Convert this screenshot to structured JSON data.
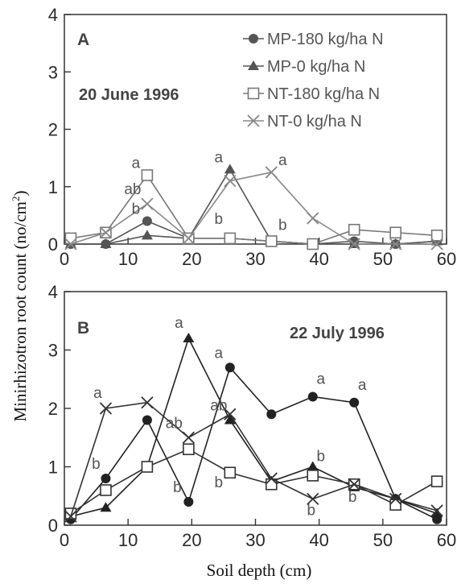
{
  "chart_data": [
    {
      "type": "line",
      "panel": "A",
      "date": "20 June 1996",
      "xlim": [
        0,
        60
      ],
      "ylim": [
        0,
        4
      ],
      "xticks": [
        "0",
        "10",
        "20",
        "30",
        "40",
        "50",
        "60"
      ],
      "yticks": [
        "0",
        "1",
        "2",
        "3",
        "4"
      ],
      "legend_position": "top-right",
      "series": [
        {
          "name": "MP-180 kg/ha N",
          "marker": "circle",
          "color": "#555555",
          "x": [
            1,
            6.5,
            13,
            19.5,
            26,
            32.5,
            39,
            45.5,
            52,
            58.5
          ],
          "y": [
            0.0,
            0.0,
            0.4,
            0.1,
            0.1,
            0.05,
            0.0,
            0.05,
            0.0,
            0.05
          ]
        },
        {
          "name": "MP-0 kg/ha N",
          "marker": "triangle",
          "color": "#555555",
          "x": [
            1,
            6.5,
            13,
            19.5,
            26,
            32.5,
            39,
            45.5,
            52,
            58.5
          ],
          "y": [
            0.0,
            0.0,
            0.15,
            0.1,
            1.3,
            0.05,
            0.0,
            0.0,
            0.0,
            0.05
          ]
        },
        {
          "name": "NT-180 kg/ha N",
          "marker": "square",
          "color": "#777777",
          "x": [
            1,
            6.5,
            13,
            19.5,
            26,
            32.5,
            39,
            45.5,
            52,
            58.5
          ],
          "y": [
            0.1,
            0.2,
            1.2,
            0.1,
            0.1,
            0.05,
            0.0,
            0.25,
            0.2,
            0.15
          ]
        },
        {
          "name": "NT-0 kg/ha N",
          "marker": "x",
          "color": "#888888",
          "x": [
            1,
            6.5,
            13,
            19.5,
            26,
            32.5,
            39,
            45.5,
            52,
            58.5
          ],
          "y": [
            0.0,
            0.2,
            0.7,
            0.1,
            1.1,
            1.25,
            0.45,
            0.0,
            0.0,
            0.0
          ]
        }
      ],
      "annotations": [
        {
          "text": "a",
          "x": 13,
          "y": 1.2
        },
        {
          "text": "ab",
          "x": 13,
          "y": 0.7
        },
        {
          "text": "b",
          "x": 13,
          "y": 0.4
        },
        {
          "text": "a",
          "x": 26,
          "y": 1.3
        },
        {
          "text": "b",
          "x": 26,
          "y": 0.1
        },
        {
          "text": "a",
          "x": 32.5,
          "y": 1.25
        },
        {
          "text": "b",
          "x": 32.5,
          "y": 0.05
        }
      ]
    },
    {
      "type": "line",
      "panel": "B",
      "date": "22 July 1996",
      "xlim": [
        0,
        60
      ],
      "ylim": [
        0,
        4
      ],
      "xticks": [
        "0",
        "10",
        "20",
        "30",
        "40",
        "50",
        "60"
      ],
      "yticks": [
        "0",
        "1",
        "2",
        "3",
        "4"
      ],
      "series": [
        {
          "name": "MP-180 kg/ha N",
          "marker": "circle",
          "color": "#222222",
          "x": [
            1,
            6.5,
            13,
            19.5,
            26,
            32.5,
            39,
            45.5,
            52,
            58.5
          ],
          "y": [
            0.1,
            0.8,
            1.8,
            0.4,
            2.7,
            1.9,
            2.2,
            2.1,
            0.45,
            0.1
          ]
        },
        {
          "name": "MP-0 kg/ha N",
          "marker": "triangle",
          "color": "#222222",
          "x": [
            1,
            6.5,
            13,
            19.5,
            26,
            32.5,
            39,
            45.5,
            52,
            58.5
          ],
          "y": [
            0.15,
            0.3,
            1.0,
            3.2,
            1.8,
            0.75,
            1.0,
            0.65,
            0.45,
            0.2
          ]
        },
        {
          "name": "NT-180 kg/ha N",
          "marker": "square",
          "color": "#333333",
          "x": [
            1,
            6.5,
            13,
            19.5,
            26,
            32.5,
            39,
            45.5,
            52,
            58.5
          ],
          "y": [
            0.2,
            0.6,
            1.0,
            1.3,
            0.9,
            0.7,
            0.85,
            0.7,
            0.35,
            0.75
          ]
        },
        {
          "name": "NT-0 kg/ha N",
          "marker": "x",
          "color": "#333333",
          "x": [
            1,
            6.5,
            13,
            19.5,
            26,
            32.5,
            39,
            45.5,
            52,
            58.5
          ],
          "y": [
            0.15,
            2.0,
            2.1,
            1.5,
            1.9,
            0.8,
            0.45,
            0.7,
            0.45,
            0.25
          ]
        }
      ],
      "annotations": [
        {
          "text": "a",
          "x": 6.5,
          "y": 2.0
        },
        {
          "text": "b",
          "x": 6.5,
          "y": 0.8
        },
        {
          "text": "a",
          "x": 19.5,
          "y": 3.2
        },
        {
          "text": "ab",
          "x": 19.5,
          "y": 1.5
        },
        {
          "text": "b",
          "x": 19.5,
          "y": 0.4
        },
        {
          "text": "a",
          "x": 26,
          "y": 2.7
        },
        {
          "text": "ab",
          "x": 26,
          "y": 1.8
        },
        {
          "text": "b",
          "x": 26,
          "y": 0.9
        },
        {
          "text": "a",
          "x": 39,
          "y": 2.2
        },
        {
          "text": "b",
          "x": 39,
          "y": 0.85
        },
        {
          "text": "b",
          "x": 39,
          "y": 0.45
        },
        {
          "text": "a",
          "x": 45.5,
          "y": 2.1
        },
        {
          "text": "b",
          "x": 45.5,
          "y": 0.65
        }
      ]
    }
  ],
  "axes": {
    "ylabel_main": "Minirhizotron root count (no/cm",
    "ylabel_sup": "2",
    "ylabel_close": ")",
    "xlabel": "Soil depth (cm)"
  }
}
